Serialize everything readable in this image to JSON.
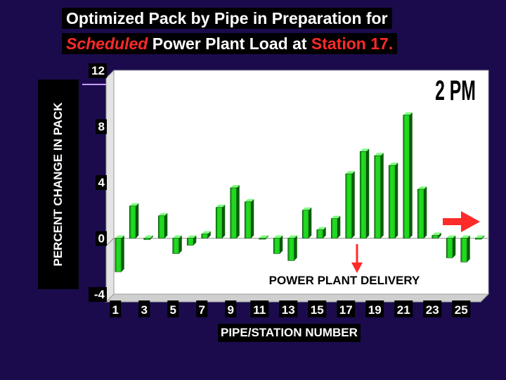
{
  "title": {
    "line1": "Optimized Pack by Pipe in Preparation for",
    "line2_part1": "Scheduled",
    "line2_part2": " Power Plant Load at ",
    "line2_part3": "Station 17."
  },
  "colors": {
    "background": "#1b0b4d",
    "bar_fill": "#22e022",
    "bar_dark": "#0a5c0a",
    "accent_red": "#ff2a2a",
    "plot_bg": "#ffffff"
  },
  "icons": {
    "delivery_arrow": "down-arrow-icon",
    "direction_arrow": "right-arrow-icon"
  },
  "chart_data": {
    "type": "bar",
    "xlabel": "PIPE/STATION NUMBER",
    "ylabel": "PERCENT CHANGE IN PACK",
    "ylim": [
      -4,
      12
    ],
    "yticks": [
      -4,
      0,
      4,
      8,
      12
    ],
    "grid": false,
    "categories": [
      "1",
      "2",
      "3",
      "4",
      "5",
      "6",
      "7",
      "8",
      "9",
      "10",
      "11",
      "12",
      "13",
      "14",
      "15",
      "16",
      "17",
      "18",
      "19",
      "20",
      "21",
      "22",
      "23",
      "24",
      "25",
      "26"
    ],
    "xtick_labels": [
      "1",
      "3",
      "5",
      "7",
      "9",
      "11",
      "13",
      "15",
      "17",
      "19",
      "21",
      "23",
      "25"
    ],
    "values": [
      -2.4,
      2.3,
      -0.1,
      1.6,
      -1.1,
      -0.5,
      0.3,
      2.2,
      3.6,
      2.6,
      0.0,
      -1.1,
      -1.6,
      2.0,
      0.6,
      1.4,
      4.6,
      6.2,
      5.9,
      5.2,
      8.8,
      3.5,
      0.2,
      -1.4,
      -1.7,
      0.0
    ],
    "annotations": {
      "time": "2 PM",
      "delivery": "POWER PLANT DELIVERY"
    }
  }
}
